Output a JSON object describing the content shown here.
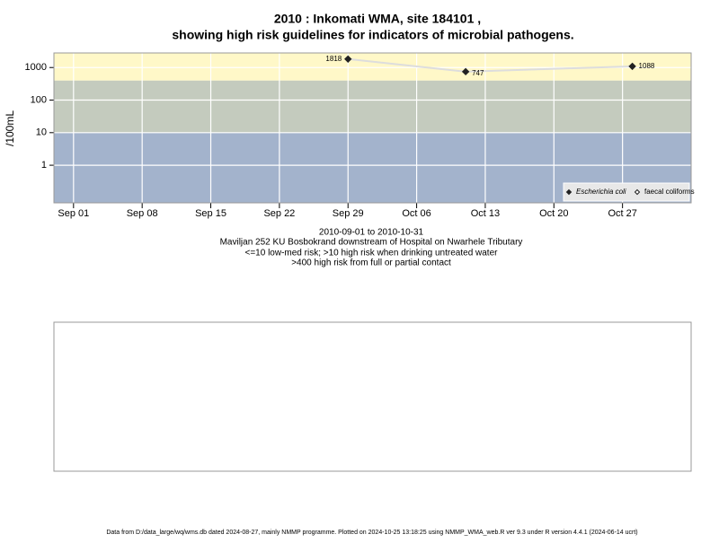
{
  "chart_data": {
    "type": "line",
    "title": "2010 : Inkomati WMA, site 184101 ,",
    "subtitle": "showing high risk guidelines for indicators of microbial pathogens.",
    "y_label": "/100mL",
    "log_y": true,
    "grid": true,
    "xlim": [
      "2010-08-30",
      "2010-11-03"
    ],
    "ylim": [
      0.07,
      2800
    ],
    "xticks": [
      {
        "value": "2010-09-01",
        "label": "Sep 01"
      },
      {
        "value": "2010-09-08",
        "label": "Sep 08"
      },
      {
        "value": "2010-09-15",
        "label": "Sep 15"
      },
      {
        "value": "2010-09-22",
        "label": "Sep 22"
      },
      {
        "value": "2010-09-29",
        "label": "Sep 29"
      },
      {
        "value": "2010-10-06",
        "label": "Oct 06"
      },
      {
        "value": "2010-10-13",
        "label": "Oct 13"
      },
      {
        "value": "2010-10-20",
        "label": "Oct 20"
      },
      {
        "value": "2010-10-27",
        "label": "Oct 27"
      }
    ],
    "yticks": [
      1,
      10,
      100,
      1000
    ],
    "thresholds": [
      10,
      400
    ],
    "band_colors": [
      "#a3b3cc",
      "#c4cbbe",
      "#fff8c8"
    ],
    "x": [
      "2010-09-29",
      "2010-10-11",
      "2010-10-28"
    ],
    "series": [
      {
        "name": "Escherichia coli",
        "color": "#222222",
        "line_color": "#dddddd",
        "values": [
          1818,
          747,
          1088
        ]
      },
      {
        "name": "faecal coliforms",
        "color": "#222222",
        "line_color": "#dddddd",
        "values": [
          null,
          null,
          null
        ]
      }
    ],
    "legend": "bottom-right",
    "notes": [
      "2010-09-01 to 2010-10-31",
      "Maviljan 252 KU Bosbokrand downstream of Hospital on Nwarhele Tributary",
      "<=10 low-med risk; >10 high risk when drinking untreated water",
      ">400 high risk from full or partial contact"
    ],
    "footer": "Data from D:/data_large/wq/wms.db dated 2024-08-27, mainly NMMP programme. Plotted on 2024-10-25 13:18:25 using NMMP_WMA_web.R ver 9.3 under R version 4.4.1 (2024-06-14 ucrt)"
  }
}
